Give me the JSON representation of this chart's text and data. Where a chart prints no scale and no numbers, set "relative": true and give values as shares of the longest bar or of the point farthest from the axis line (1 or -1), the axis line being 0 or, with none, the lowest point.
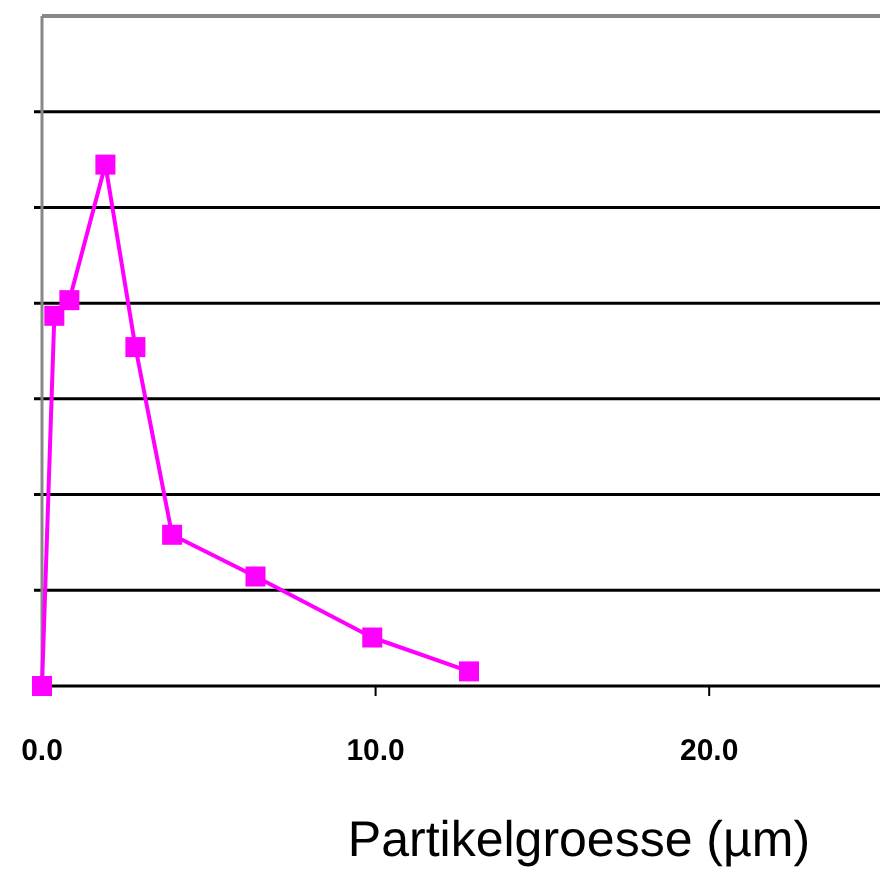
{
  "chart_data": {
    "type": "line",
    "xlabel": "Partikelgroesse (µm)",
    "relative": true,
    "x": [
      0,
      0.37,
      0.82,
      1.9,
      2.8,
      3.9,
      6.4,
      9.9,
      12.8
    ],
    "series": [
      {
        "color": "#ff00ff",
        "values": [
          0,
          0.71,
          0.74,
          1,
          0.65,
          0.29,
          0.21,
          0.093,
          0.028
        ]
      }
    ],
    "xlim": [
      0,
      25
    ],
    "xticks": [
      {
        "value": 0,
        "label": "0.0"
      },
      {
        "value": 10,
        "label": "10.0"
      },
      {
        "value": 20,
        "label": "20.0"
      }
    ],
    "grid": "y",
    "marker": "square",
    "line_style": "solid"
  }
}
